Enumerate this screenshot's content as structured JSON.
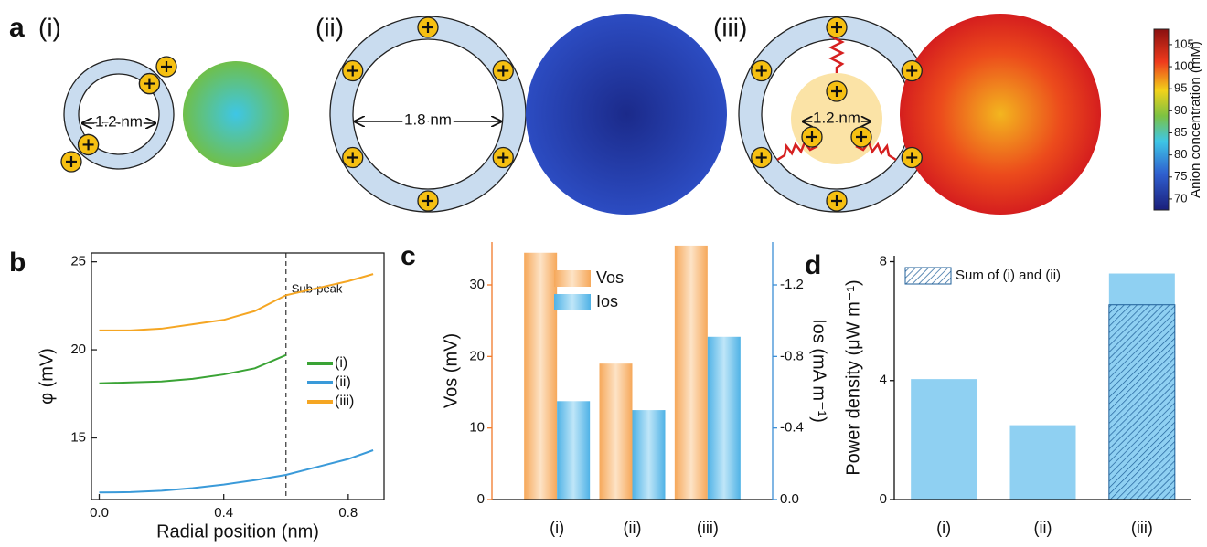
{
  "panel_a": {
    "label": "a",
    "items": [
      {
        "label": "(i)",
        "diameter": "1.2 nm"
      },
      {
        "label": "(ii)",
        "diameter": "1.8 nm"
      },
      {
        "label": "(iii)",
        "diameter": "1.2 nm"
      }
    ],
    "colorbar": {
      "label": "Anion concentration (mM)",
      "lim": [
        67.5,
        108.5
      ],
      "ticks": [
        70,
        75,
        80,
        85,
        90,
        95,
        100,
        105
      ]
    }
  },
  "chart_data": [
    {
      "type": "line",
      "panel_label": "b",
      "xlabel": "Radial position (nm)",
      "ylabel": "φ (mV)",
      "x": [
        0,
        0.1,
        0.2,
        0.3,
        0.4,
        0.5,
        0.6,
        0.7,
        0.8,
        0.88
      ],
      "xlim": [
        -0.025,
        0.915
      ],
      "xticks": [
        {
          "value": 0,
          "label": "0.0"
        },
        {
          "value": 0.4,
          "label": "0.4"
        },
        {
          "value": 0.8,
          "label": "0.8"
        }
      ],
      "ylim": [
        11.5,
        25.5
      ],
      "yticks": [
        15,
        20,
        25
      ],
      "vline": 0.6,
      "annotation": "Sub-peak",
      "series": [
        {
          "name": "(i)",
          "color": "#3aa335",
          "values": [
            18.1,
            18.15,
            18.2,
            18.35,
            18.6,
            18.95,
            19.7,
            null,
            null,
            null
          ]
        },
        {
          "name": "(ii)",
          "color": "#3a9ad9",
          "values": [
            11.9,
            11.92,
            12.0,
            12.15,
            12.35,
            12.6,
            12.9,
            13.35,
            13.8,
            14.3
          ]
        },
        {
          "name": "(iii)",
          "color": "#f5a623",
          "values": [
            21.1,
            21.1,
            21.2,
            21.45,
            21.7,
            22.2,
            23.1,
            23.5,
            23.9,
            24.3
          ]
        }
      ]
    },
    {
      "type": "bar",
      "panel_label": "c",
      "ylabel": "Vos (mV)",
      "y2label": "Ios (mA m⁻¹)",
      "categories": [
        "(i)",
        "(ii)",
        "(iii)"
      ],
      "ylim": [
        0,
        36
      ],
      "yticks": [
        0,
        10,
        20,
        30
      ],
      "y2lim": [
        0,
        -1.44
      ],
      "y2ticks": [
        {
          "value": 0,
          "label": "0.0"
        },
        -0.4,
        -0.8,
        -1.2
      ],
      "series": [
        {
          "name": "Vos",
          "color": "#f8b878",
          "values": [
            34.5,
            19.0,
            35.5
          ]
        },
        {
          "name": "Ios",
          "color": "#6cc0ec",
          "axis": "y2",
          "values": [
            -0.55,
            -0.5,
            -0.91
          ]
        }
      ]
    },
    {
      "type": "bar",
      "panel_label": "d",
      "ylabel": "Power density (μW m⁻¹)",
      "categories": [
        "(i)",
        "(ii)",
        "(iii)"
      ],
      "ylim": [
        0,
        8.2
      ],
      "yticks": [
        0,
        4,
        8
      ],
      "series": [
        {
          "color": "#8fd0f2",
          "values": [
            4.05,
            2.5,
            7.6
          ]
        },
        {
          "name": "Sum of (i) and (ii)",
          "color": "#1f5f99",
          "hatch": true,
          "values": [
            null,
            null,
            6.55
          ]
        }
      ]
    }
  ]
}
